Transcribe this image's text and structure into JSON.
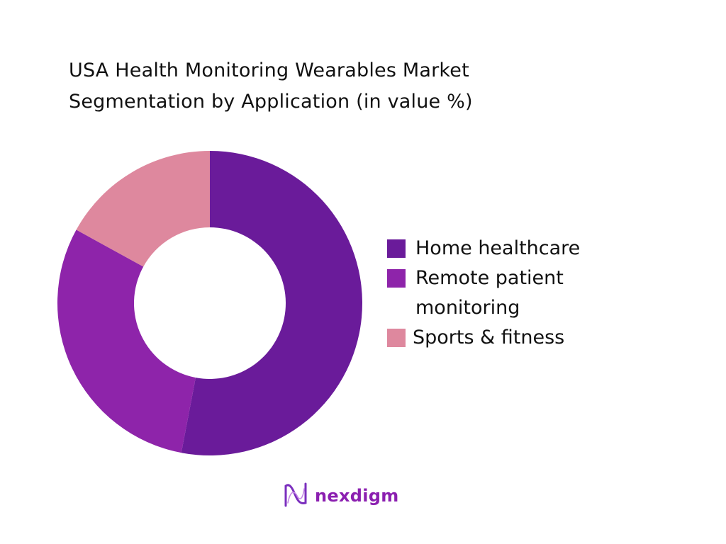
{
  "title": {
    "line1": "USA Health Monitoring Wearables Market",
    "line2": "Segmentation by Application (in value %)"
  },
  "legend": {
    "items": [
      {
        "label": "Home healthcare",
        "color": "#6a1b9a"
      },
      {
        "label": "Remote patient monitoring",
        "color": "#8e24aa"
      },
      {
        "label": "Sports & fitness",
        "color": "#de889e"
      }
    ]
  },
  "logo": {
    "text": "nexdigm",
    "icon": "nexdigm-wave-icon"
  },
  "chart_data": {
    "type": "pie",
    "subtype": "donut",
    "title": "USA Health Monitoring Wearables Market Segmentation by Application (in value %)",
    "categories": [
      "Home healthcare",
      "Remote patient monitoring",
      "Sports & fitness"
    ],
    "values": [
      53,
      30,
      17
    ],
    "colors": [
      "#6a1b9a",
      "#8e24aa",
      "#de889e"
    ],
    "unit": "%",
    "legend_position": "right",
    "start_angle_deg": 0,
    "direction": "clockwise",
    "data_labels": false
  }
}
